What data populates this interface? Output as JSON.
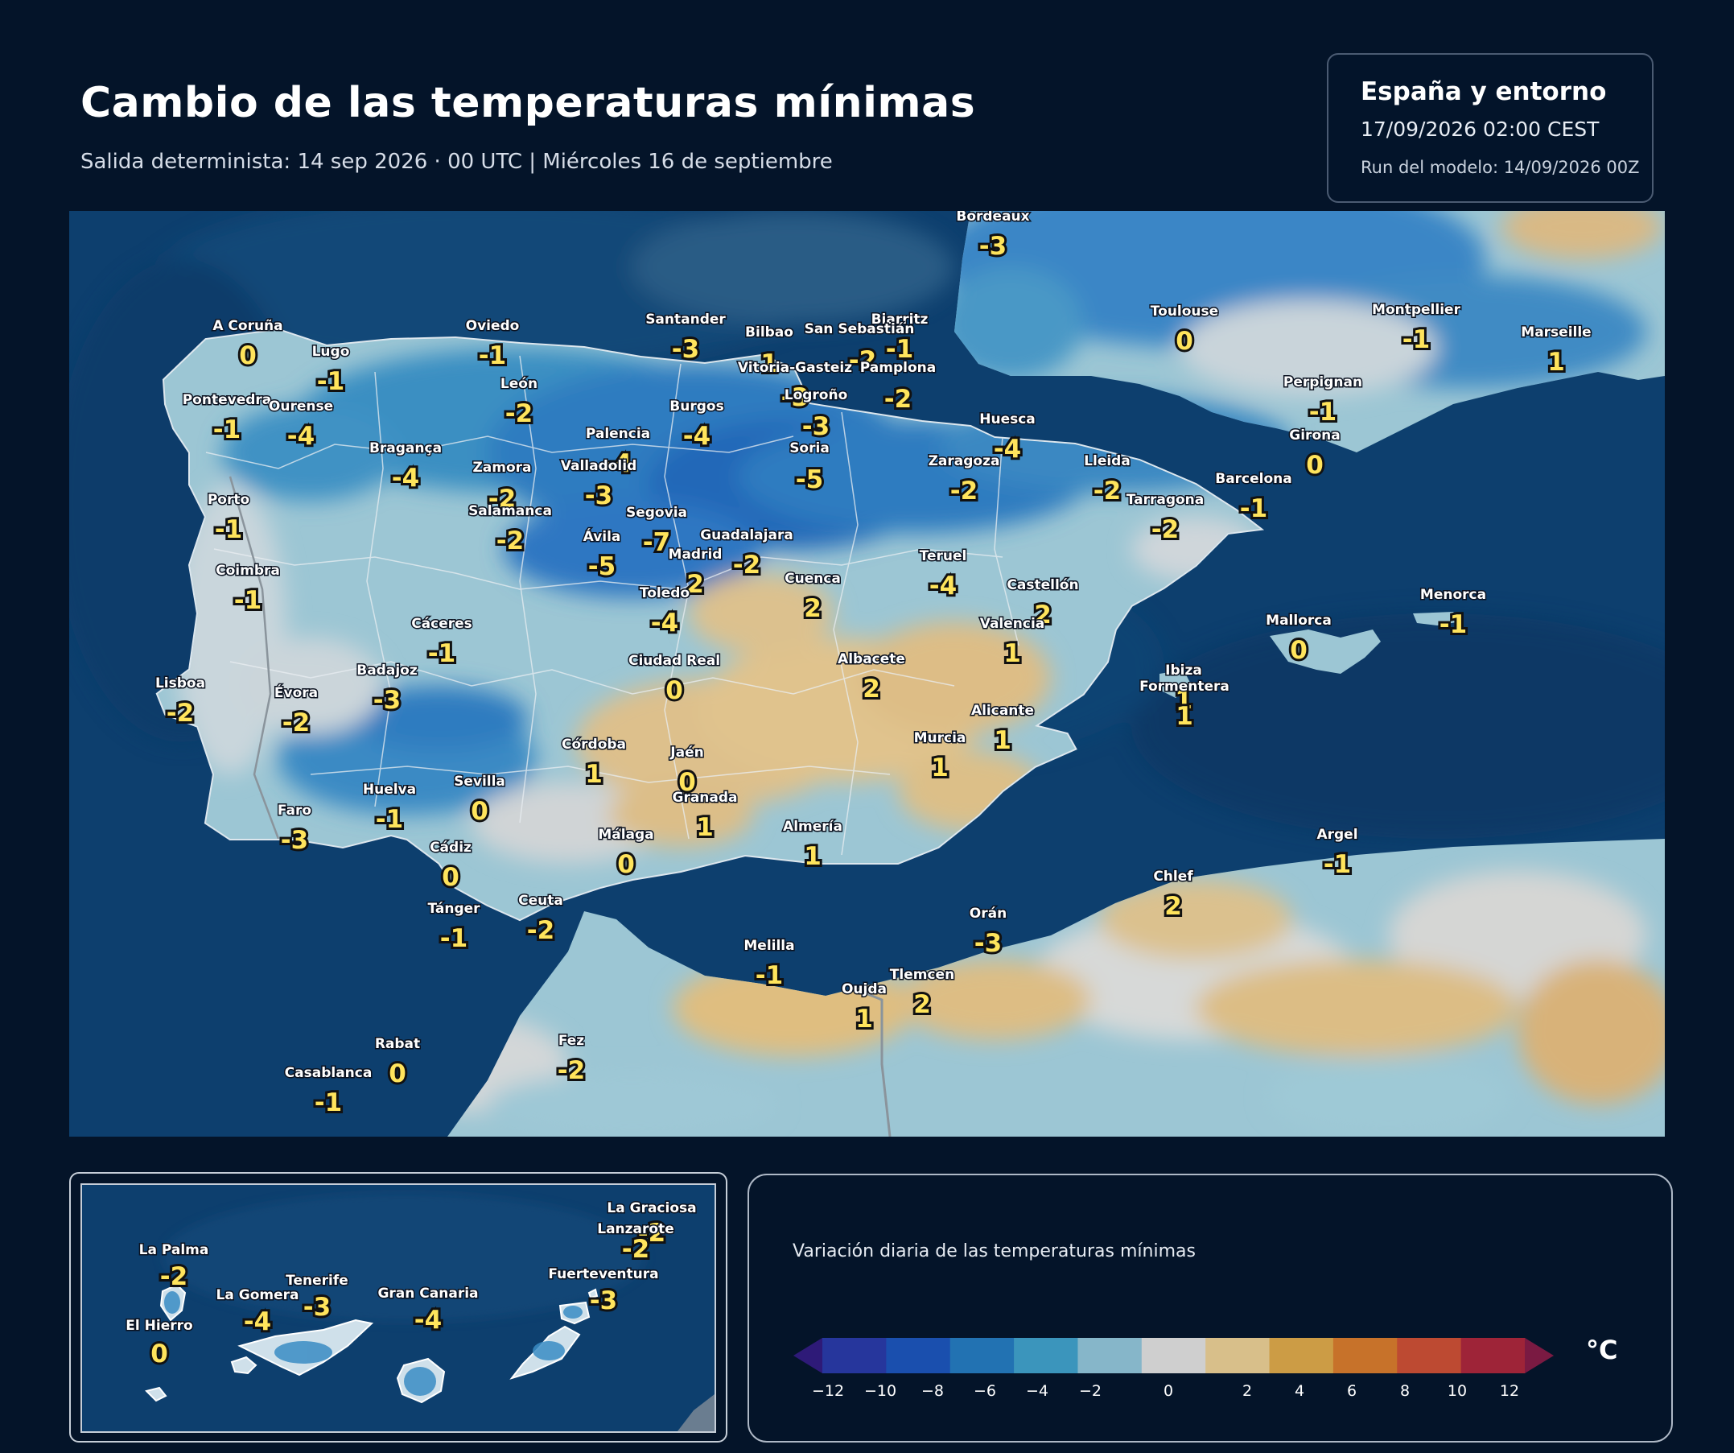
{
  "header": {
    "title": "Cambio de las temperaturas mínimas",
    "subtitle": "Salida determinista: 14 sep 2026 · 00 UTC  |  Miércoles 16 de septiembre"
  },
  "info": {
    "region": "España y entorno",
    "valid": "17/09/2026  02:00 CEST",
    "run": "Run del modelo: 14/09/2026 00Z"
  },
  "map": {
    "cities": [
      {
        "name": "Bordeaux",
        "value": "-3"
      },
      {
        "name": "Toulouse",
        "value": "0"
      },
      {
        "name": "Montpellier",
        "value": "-1"
      },
      {
        "name": "Marseille",
        "value": "1"
      },
      {
        "name": "Biarritz",
        "value": "-1"
      },
      {
        "name": "San Sebastián",
        "value": "-2"
      },
      {
        "name": "Bilbao",
        "value": "1"
      },
      {
        "name": "Santander",
        "value": "-3"
      },
      {
        "name": "Oviedo",
        "value": "-1"
      },
      {
        "name": "A Coruña",
        "value": "0"
      },
      {
        "name": "Lugo",
        "value": "-1"
      },
      {
        "name": "Pontevedra",
        "value": "-1"
      },
      {
        "name": "Ourense",
        "value": "-4"
      },
      {
        "name": "León",
        "value": "-2"
      },
      {
        "name": "Vitoria-Gasteiz",
        "value": "-3"
      },
      {
        "name": "Pamplona",
        "value": "-2"
      },
      {
        "name": "Logroño",
        "value": "-3"
      },
      {
        "name": "Burgos",
        "value": "-4"
      },
      {
        "name": "Palencia",
        "value": "-4"
      },
      {
        "name": "Huesca",
        "value": "-4"
      },
      {
        "name": "Perpignan",
        "value": "-1"
      },
      {
        "name": "Girona",
        "value": "0"
      },
      {
        "name": "Soria",
        "value": "-5"
      },
      {
        "name": "Zaragoza",
        "value": "-2"
      },
      {
        "name": "Lleida",
        "value": "-2"
      },
      {
        "name": "Barcelona",
        "value": "-1"
      },
      {
        "name": "Tarragona",
        "value": "-2"
      },
      {
        "name": "Bragança",
        "value": "-4"
      },
      {
        "name": "Zamora",
        "value": "-2"
      },
      {
        "name": "Valladolid",
        "value": "-3"
      },
      {
        "name": "Porto",
        "value": "-1"
      },
      {
        "name": "Salamanca",
        "value": "-2"
      },
      {
        "name": "Segovia",
        "value": "-7"
      },
      {
        "name": "Ávila",
        "value": "-5"
      },
      {
        "name": "Guadalajara",
        "value": "-2"
      },
      {
        "name": "Madrid",
        "value": "2"
      },
      {
        "name": "Teruel",
        "value": "-4"
      },
      {
        "name": "Coimbra",
        "value": "-1"
      },
      {
        "name": "Cuenca",
        "value": "2"
      },
      {
        "name": "Castellón",
        "value": "2"
      },
      {
        "name": "Toledo",
        "value": "-4"
      },
      {
        "name": "Cáceres",
        "value": "-1"
      },
      {
        "name": "Valencia",
        "value": "1"
      },
      {
        "name": "Mallorca",
        "value": "0"
      },
      {
        "name": "Menorca",
        "value": "-1"
      },
      {
        "name": "Ciudad Real",
        "value": "0"
      },
      {
        "name": "Albacete",
        "value": "2"
      },
      {
        "name": "Badajoz",
        "value": "-3"
      },
      {
        "name": "Lisboa",
        "value": "-2"
      },
      {
        "name": "Évora",
        "value": "-2"
      },
      {
        "name": "Ibiza",
        "value": "1"
      },
      {
        "name": "Formentera",
        "value": "1"
      },
      {
        "name": "Alicante",
        "value": "1"
      },
      {
        "name": "Murcia",
        "value": "1"
      },
      {
        "name": "Córdoba",
        "value": "1"
      },
      {
        "name": "Jaén",
        "value": "0"
      },
      {
        "name": "Granada",
        "value": "1"
      },
      {
        "name": "Sevilla",
        "value": "0"
      },
      {
        "name": "Huelva",
        "value": "-1"
      },
      {
        "name": "Faro",
        "value": "-3"
      },
      {
        "name": "Almería",
        "value": "1"
      },
      {
        "name": "Málaga",
        "value": "0"
      },
      {
        "name": "Cádiz",
        "value": "0"
      },
      {
        "name": "Argel",
        "value": "-1"
      },
      {
        "name": "Chlef",
        "value": "2"
      },
      {
        "name": "Ceuta",
        "value": "-2"
      },
      {
        "name": "Tánger",
        "value": "-1"
      },
      {
        "name": "Orán",
        "value": "-3"
      },
      {
        "name": "Melilla",
        "value": "-1"
      },
      {
        "name": "Tlemcen",
        "value": "2"
      },
      {
        "name": "Oujda",
        "value": "1"
      },
      {
        "name": "Rabat",
        "value": "0"
      },
      {
        "name": "Fez",
        "value": "-2"
      },
      {
        "name": "Casablanca",
        "value": "-1"
      }
    ]
  },
  "canarias": {
    "islands": [
      {
        "name": "La Graciosa",
        "value": "-2"
      },
      {
        "name": "Lanzarote",
        "value": "-2"
      },
      {
        "name": "La Palma",
        "value": "-2"
      },
      {
        "name": "Fuerteventura",
        "value": "-3"
      },
      {
        "name": "Tenerife",
        "value": "-3"
      },
      {
        "name": "La Gomera",
        "value": "-4"
      },
      {
        "name": "Gran Canaria",
        "value": "-4"
      },
      {
        "name": "El Hierro",
        "value": "0"
      }
    ]
  },
  "legend": {
    "title": "Variación diaria de las temperaturas mínimas",
    "unit": "°C",
    "colors": [
      "#2e1a78",
      "#26369c",
      "#1a4fae",
      "#2272b2",
      "#3b95bc",
      "#86b6c9",
      "#cfcfcf",
      "#d8bf8a",
      "#cc9c45",
      "#c7722a",
      "#bd4a32",
      "#9e2438",
      "#7a1a42"
    ],
    "ticks": [
      "−12",
      "−10",
      "−8",
      "−6",
      "−4",
      "−2",
      "0",
      "2",
      "4",
      "6",
      "8",
      "10",
      "12"
    ]
  },
  "colors": {
    "background": "#041429",
    "sea": "#0b3d6c",
    "value_text": "#ffe45c"
  }
}
